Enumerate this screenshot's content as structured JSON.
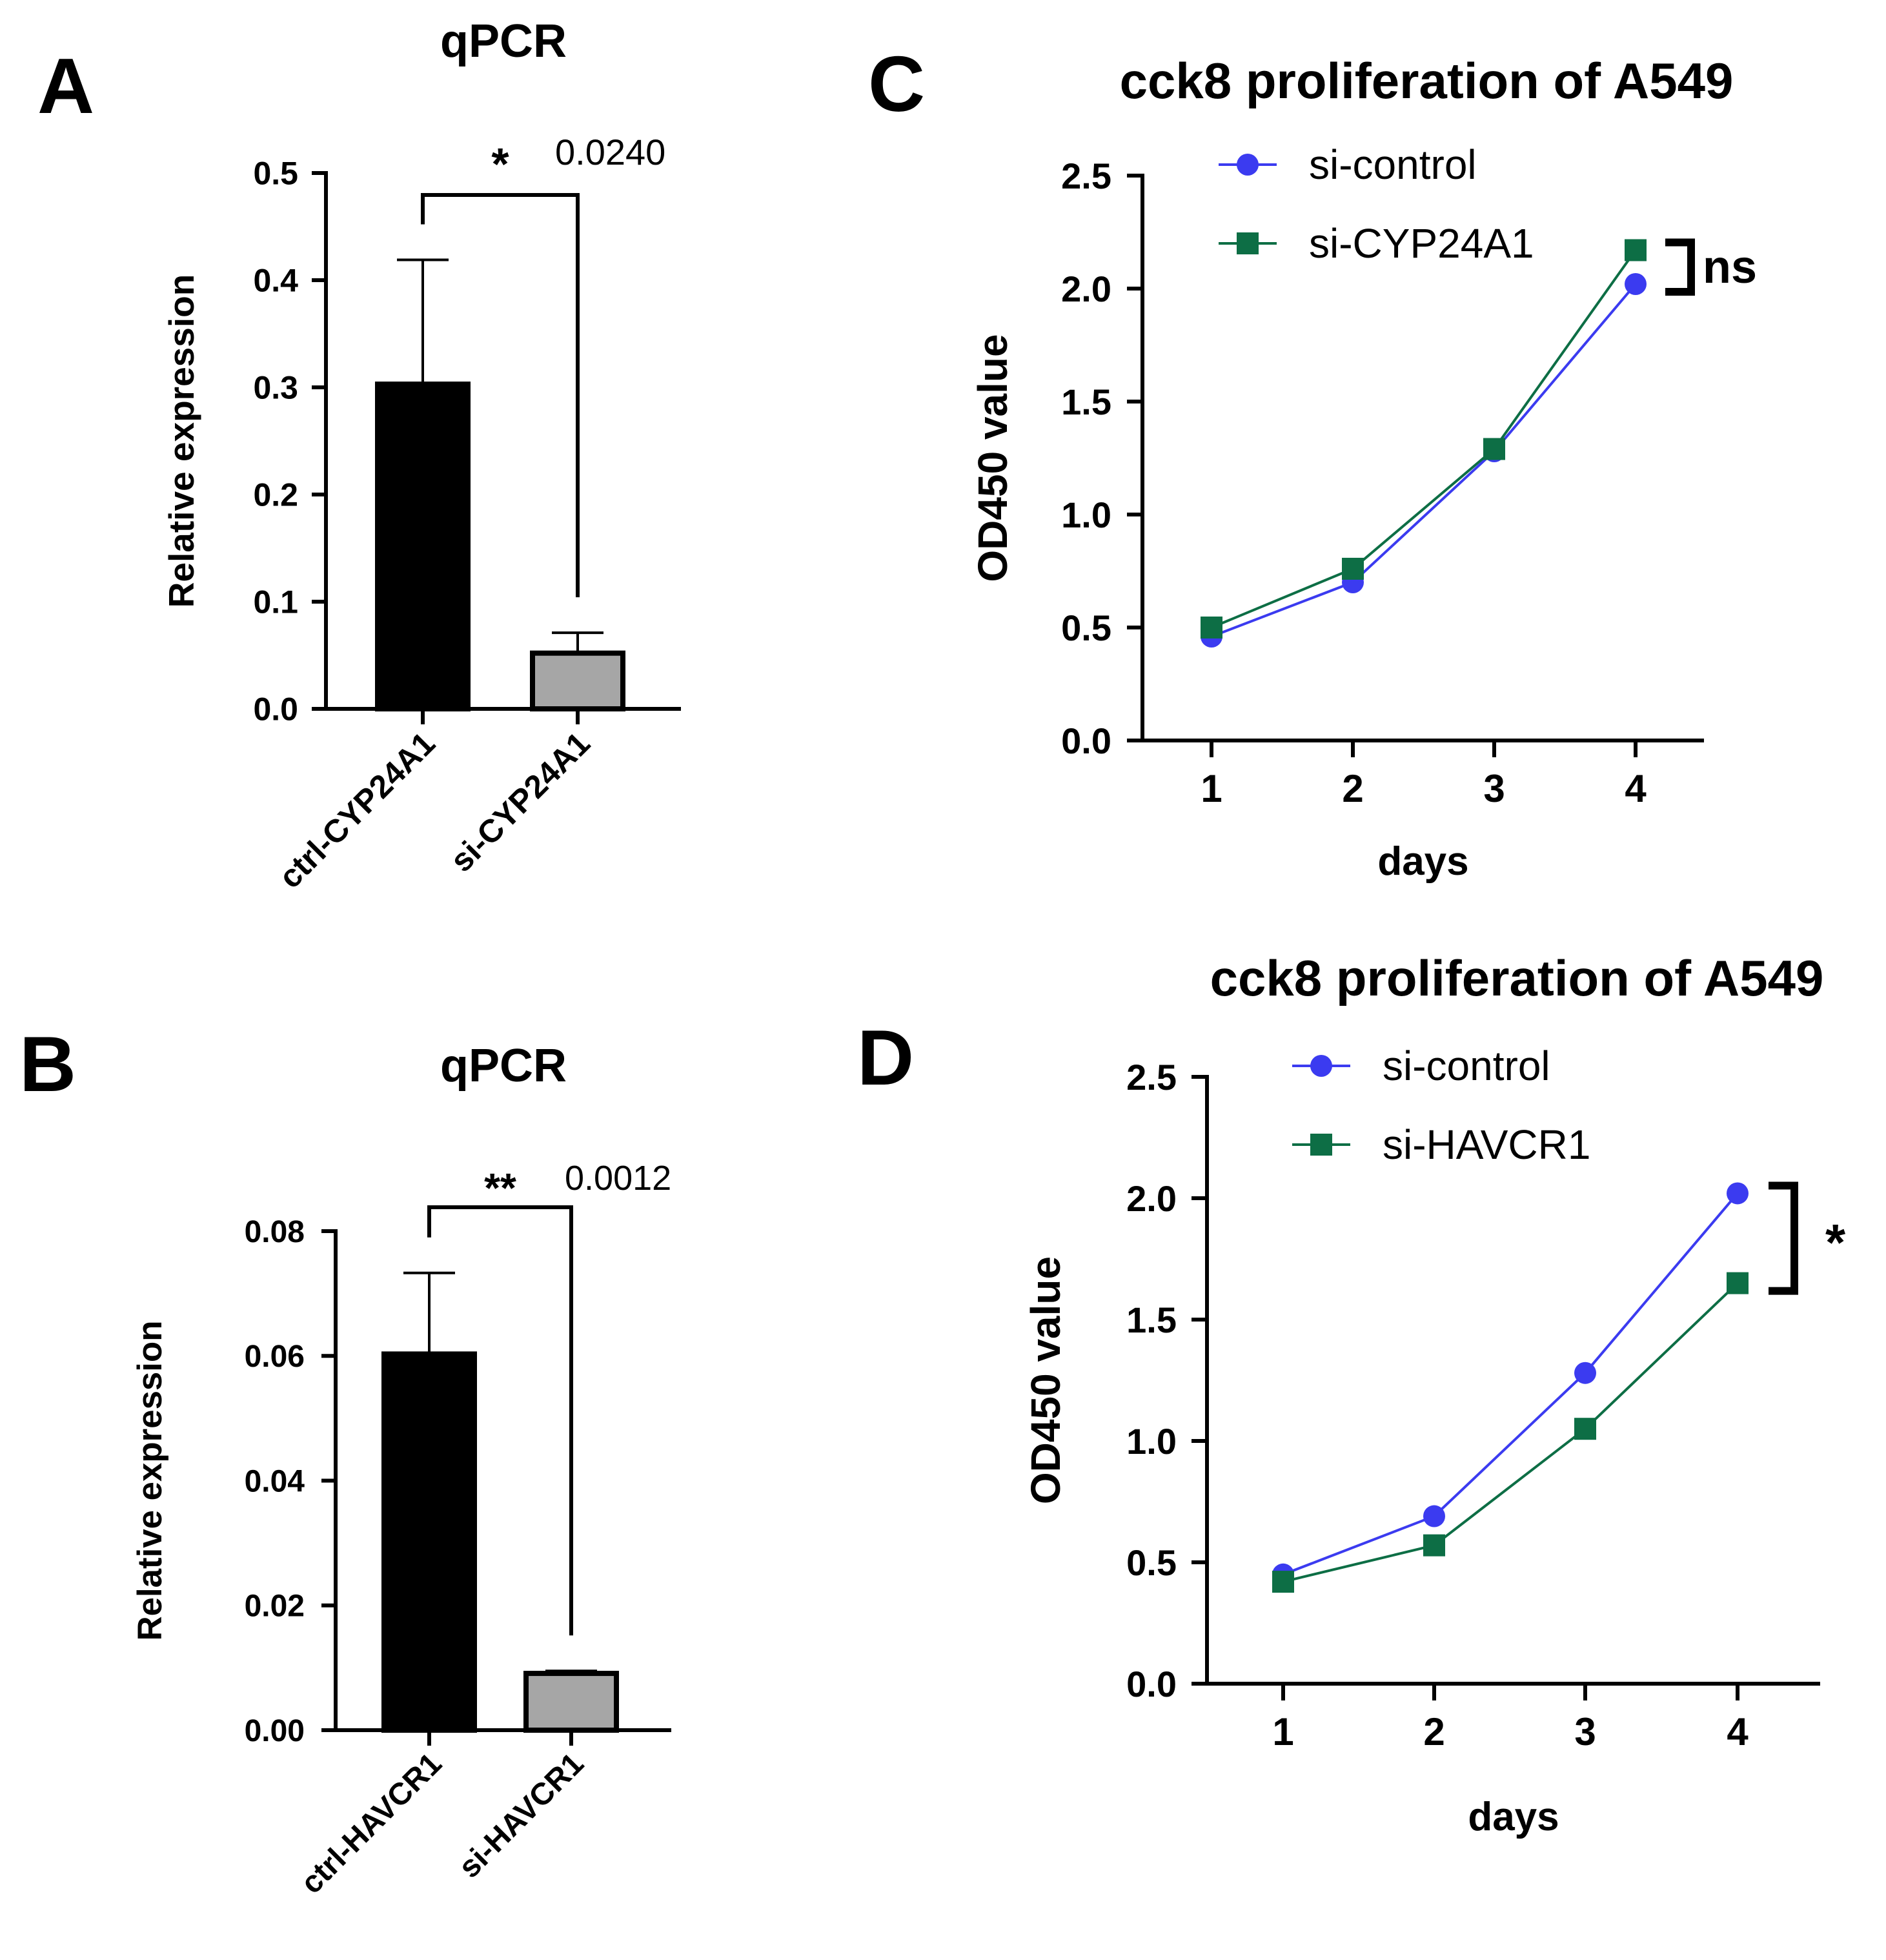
{
  "colors": {
    "axis": "#000000",
    "bar_ctrl": "#000000",
    "bar_si": "#a6a6a6",
    "si_control": "#3b3bf0",
    "si_knockdown": "#0d6e45"
  },
  "chart_data": [
    {
      "panel": "A",
      "type": "bar",
      "title": "qPCR",
      "xlabel": "",
      "ylabel": "Relative expression",
      "ylim": [
        0,
        0.5
      ],
      "yticks": [
        "0.0",
        "0.1",
        "0.2",
        "0.3",
        "0.4",
        "0.5"
      ],
      "categories": [
        "ctrl-CYP24A1",
        "si-CYP24A1"
      ],
      "values": [
        0.303,
        0.052
      ],
      "errors": [
        0.116,
        0.019
      ],
      "significance": {
        "stars": "*",
        "p_value": "0.0240"
      }
    },
    {
      "panel": "B",
      "type": "bar",
      "title": "qPCR",
      "xlabel": "",
      "ylabel": "Relative expression",
      "ylim": [
        0,
        0.08
      ],
      "yticks": [
        "0.00",
        "0.02",
        "0.04",
        "0.06",
        "0.08"
      ],
      "categories": [
        "ctrl-HAVCR1",
        "si-HAVCR1"
      ],
      "values": [
        0.0603,
        0.0091
      ],
      "errors": [
        0.013,
        0.0004
      ],
      "significance": {
        "stars": "**",
        "p_value": "0.0012"
      }
    },
    {
      "panel": "C",
      "type": "line",
      "title": "cck8 proliferation of A549",
      "xlabel": "days",
      "ylabel": "OD450 value",
      "ylim": [
        0,
        2.5
      ],
      "yticks": [
        "0.0",
        "0.5",
        "1.0",
        "1.5",
        "2.0",
        "2.5"
      ],
      "x": [
        1,
        2,
        3,
        4
      ],
      "xticks": [
        "1",
        "2",
        "3",
        "4"
      ],
      "series": [
        {
          "name": "si-control",
          "marker": "circle",
          "values": [
            0.46,
            0.7,
            1.28,
            2.02
          ]
        },
        {
          "name": "si-CYP24A1",
          "marker": "square",
          "values": [
            0.5,
            0.76,
            1.29,
            2.17
          ]
        }
      ],
      "significance": "ns"
    },
    {
      "panel": "D",
      "type": "line",
      "title": "cck8 proliferation of A549",
      "xlabel": "days",
      "ylabel": "OD450 value",
      "ylim": [
        0,
        2.5
      ],
      "yticks": [
        "0.0",
        "0.5",
        "1.0",
        "1.5",
        "2.0",
        "2.5"
      ],
      "x": [
        1,
        2,
        3,
        4
      ],
      "xticks": [
        "1",
        "2",
        "3",
        "4"
      ],
      "series": [
        {
          "name": "si-control",
          "marker": "circle",
          "values": [
            0.45,
            0.69,
            1.28,
            2.02
          ]
        },
        {
          "name": "si-HAVCR1",
          "marker": "square",
          "values": [
            0.42,
            0.57,
            1.05,
            1.65
          ]
        }
      ],
      "significance": "*"
    }
  ]
}
